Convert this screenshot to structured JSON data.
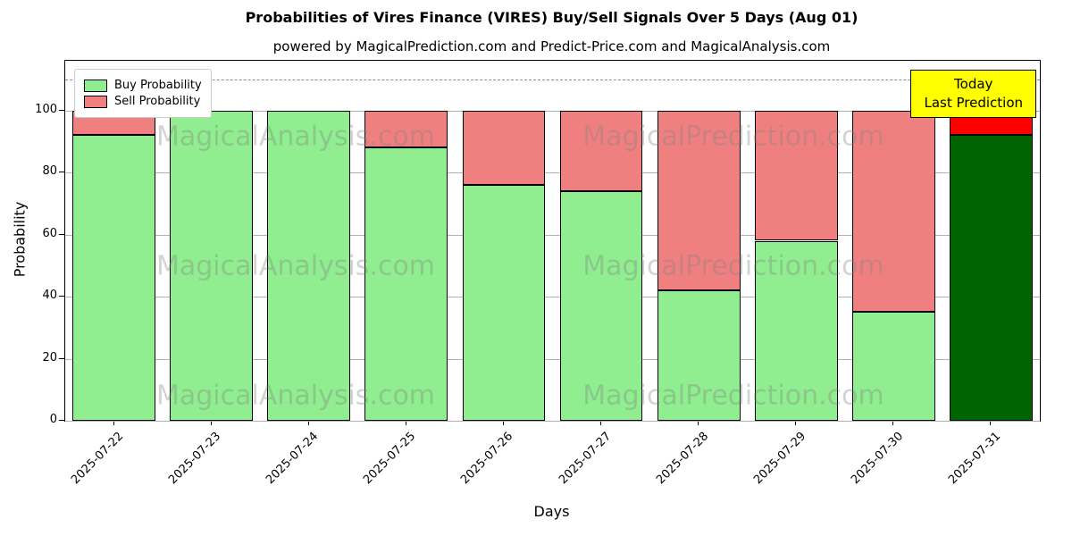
{
  "title": "Probabilities of Vires Finance (VIRES) Buy/Sell Signals Over 5 Days (Aug 01)",
  "subtitle": "powered by MagicalPrediction.com and Predict-Price.com and MagicalAnalysis.com",
  "xlabel": "Days",
  "ylabel": "Probability",
  "legend": [
    {
      "label": "Buy Probability",
      "color": "#90ee90"
    },
    {
      "label": "Sell Probability",
      "color": "#f08080"
    }
  ],
  "annotation": {
    "line1": "Today",
    "line2": "Last Prediction",
    "bg": "#ffff00"
  },
  "watermarks": {
    "left": "MagicalAnalysis.com",
    "right": "MagicalPrediction.com"
  },
  "chart_data": {
    "type": "bar",
    "stacked": true,
    "title": "Probabilities of Vires Finance (VIRES) Buy/Sell Signals Over 5 Days (Aug 01)",
    "xlabel": "Days",
    "ylabel": "Probability",
    "categories": [
      "2025-07-22",
      "2025-07-23",
      "2025-07-24",
      "2025-07-25",
      "2025-07-26",
      "2025-07-27",
      "2025-07-28",
      "2025-07-29",
      "2025-07-30",
      "2025-07-31"
    ],
    "series": [
      {
        "name": "Buy Probability",
        "color": "#90ee90",
        "values": [
          92,
          100,
          100,
          88,
          76,
          74,
          42,
          58,
          35,
          92
        ]
      },
      {
        "name": "Sell Probability",
        "color": "#f08080",
        "values": [
          8,
          0,
          0,
          12,
          24,
          26,
          58,
          42,
          65,
          8
        ]
      }
    ],
    "today_index": 9,
    "today_colors": {
      "buy": "#006400",
      "sell": "#ff0000"
    },
    "ylim": [
      0,
      116
    ],
    "yticks": [
      0,
      20,
      40,
      60,
      80,
      100
    ],
    "dashed_line_y": 110,
    "grid": true,
    "legend_position": "upper left",
    "bar_edge_color": "#000000"
  }
}
